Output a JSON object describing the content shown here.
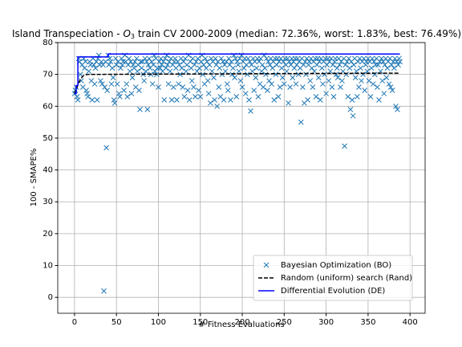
{
  "chart_data": {
    "type": "scatter",
    "title": [
      "Island Transpeciation - ",
      "O",
      "3",
      " train CV 2000-2009 (median: 72.36%, worst: 1.83%, best: 76.49%)"
    ],
    "xlabel": "# Fitness Evaluations",
    "ylabel": "100 - SMAPE%",
    "xlim": [
      -20,
      418
    ],
    "ylim": [
      -5,
      80
    ],
    "xticks": [
      0,
      50,
      100,
      150,
      200,
      250,
      300,
      350,
      400
    ],
    "yticks": [
      0,
      10,
      20,
      30,
      40,
      50,
      60,
      70,
      80
    ],
    "grid": true,
    "legend": "lower right",
    "series": [
      {
        "name": "Bayesian Optimization (BO)",
        "type": "scatter",
        "color": "#1f77b4",
        "x": [
          0,
          1,
          2,
          3,
          4,
          5,
          6,
          7,
          8,
          9,
          10,
          11,
          12,
          13,
          14,
          15,
          16,
          17,
          18,
          19,
          20,
          21,
          22,
          23,
          24,
          25,
          26,
          27,
          28,
          29,
          30,
          31,
          32,
          33,
          34,
          35,
          36,
          37,
          38,
          39,
          40,
          41,
          42,
          43,
          44,
          45,
          46,
          47,
          48,
          49,
          50,
          51,
          52,
          53,
          54,
          55,
          56,
          57,
          58,
          59,
          60,
          61,
          62,
          63,
          64,
          65,
          66,
          67,
          68,
          69,
          70,
          71,
          72,
          73,
          74,
          75,
          76,
          77,
          78,
          79,
          80,
          81,
          82,
          83,
          84,
          85,
          86,
          87,
          88,
          89,
          90,
          91,
          92,
          93,
          94,
          95,
          96,
          97,
          98,
          99,
          100,
          101,
          102,
          103,
          104,
          105,
          106,
          107,
          108,
          109,
          110,
          111,
          112,
          113,
          114,
          115,
          116,
          117,
          118,
          119,
          120,
          121,
          122,
          123,
          124,
          125,
          126,
          127,
          128,
          129,
          130,
          131,
          132,
          133,
          134,
          135,
          136,
          137,
          138,
          139,
          140,
          141,
          142,
          143,
          144,
          145,
          146,
          147,
          148,
          149,
          150,
          151,
          152,
          153,
          154,
          155,
          156,
          157,
          158,
          159,
          160,
          161,
          162,
          163,
          164,
          165,
          166,
          167,
          168,
          169,
          170,
          171,
          172,
          173,
          174,
          175,
          176,
          177,
          178,
          179,
          180,
          181,
          182,
          183,
          184,
          185,
          186,
          187,
          188,
          189,
          190,
          191,
          192,
          193,
          194,
          195,
          196,
          197,
          198,
          199,
          200,
          201,
          202,
          203,
          204,
          205,
          206,
          207,
          208,
          209,
          210,
          211,
          212,
          213,
          214,
          215,
          216,
          217,
          218,
          219,
          220,
          221,
          222,
          223,
          224,
          225,
          226,
          227,
          228,
          229,
          230,
          231,
          232,
          233,
          234,
          235,
          236,
          237,
          238,
          239,
          240,
          241,
          242,
          243,
          244,
          245,
          246,
          247,
          248,
          249,
          250,
          251,
          252,
          253,
          254,
          255,
          256,
          257,
          258,
          259,
          260,
          261,
          262,
          263,
          264,
          265,
          266,
          267,
          268,
          269,
          270,
          271,
          272,
          273,
          274,
          275,
          276,
          277,
          278,
          279,
          280,
          281,
          282,
          283,
          284,
          285,
          286,
          287,
          288,
          289,
          290,
          291,
          292,
          293,
          294,
          295,
          296,
          297,
          298,
          299,
          300,
          301,
          302,
          303,
          304,
          305,
          306,
          307,
          308,
          309,
          310,
          311,
          312,
          313,
          314,
          315,
          316,
          317,
          318,
          319,
          320,
          321,
          322,
          323,
          324,
          325,
          326,
          327,
          328,
          329,
          330,
          331,
          332,
          333,
          334,
          335,
          336,
          337,
          338,
          339,
          340,
          341,
          342,
          343,
          344,
          345,
          346,
          347,
          348,
          349,
          350,
          351,
          352,
          353,
          354,
          355,
          356,
          357,
          358,
          359,
          360,
          361,
          362,
          363,
          364,
          365,
          366,
          367,
          368,
          369,
          370,
          371,
          372,
          373,
          374,
          375,
          376,
          377,
          378,
          379,
          380,
          381,
          382,
          383,
          384,
          385,
          386,
          387,
          388
        ],
        "values": [
          64,
          65,
          66,
          63,
          62,
          75,
          74,
          70,
          68,
          73,
          66,
          75,
          72,
          74,
          65,
          64,
          63,
          71,
          74,
          73,
          68,
          62,
          75,
          73,
          67,
          72,
          74,
          62,
          75,
          76,
          73,
          68,
          74,
          67,
          73,
          2,
          66,
          74,
          47,
          65,
          76,
          73,
          75,
          74,
          67,
          72,
          69,
          62,
          61,
          75,
          73,
          67,
          74,
          64,
          63,
          72,
          75,
          73,
          74,
          65,
          76,
          74,
          67,
          63,
          73,
          75,
          71,
          74,
          64,
          69,
          73,
          72,
          74,
          66,
          75,
          71,
          73,
          65,
          59,
          74,
          72,
          74,
          70,
          68,
          75,
          71,
          74,
          59,
          73,
          75,
          72,
          70,
          74,
          67,
          73,
          76,
          71,
          75,
          70,
          72,
          66,
          74,
          72,
          75,
          73,
          71,
          74,
          62,
          75,
          72,
          76,
          73,
          67,
          74,
          71,
          75,
          62,
          73,
          66,
          74,
          75,
          72,
          62,
          74,
          67,
          73,
          70,
          75,
          72,
          66,
          74,
          63,
          75,
          71,
          73,
          65,
          76,
          62,
          74,
          72,
          68,
          75,
          66,
          73,
          63,
          74,
          71,
          75,
          65,
          72,
          63,
          74,
          76,
          70,
          73,
          67,
          75,
          72,
          74,
          68,
          64,
          73,
          61,
          75,
          71,
          74,
          69,
          62,
          75,
          73,
          60,
          74,
          66,
          72,
          63,
          75,
          70,
          74,
          62,
          73,
          71,
          74,
          67,
          65,
          75,
          73,
          62,
          74,
          70,
          72,
          76,
          69,
          75,
          63,
          74,
          73,
          71,
          75,
          68,
          76,
          66,
          74,
          72,
          75,
          64,
          73,
          70,
          75,
          62,
          74,
          58.5,
          73,
          71,
          75,
          65,
          74,
          69,
          72,
          75,
          63,
          74,
          67,
          75,
          71,
          73,
          66,
          76,
          72,
          70,
          75,
          65,
          74,
          68,
          73,
          75,
          67,
          72,
          74,
          62,
          75,
          70,
          73,
          75,
          63,
          74,
          66,
          75,
          72,
          69,
          74,
          67,
          75,
          73,
          71,
          75,
          61,
          74,
          66,
          73,
          75,
          69,
          74,
          72,
          75,
          67,
          73,
          75,
          70,
          74,
          72,
          55,
          75,
          66,
          73,
          61,
          74,
          70,
          75,
          62,
          73,
          74,
          68,
          75,
          72,
          66,
          74,
          71,
          75,
          63,
          73,
          75,
          69,
          74,
          62,
          75,
          72,
          67,
          74,
          70,
          75,
          64,
          73,
          75,
          68,
          74,
          71,
          75,
          66,
          73,
          63,
          74,
          75,
          70,
          72,
          69,
          75,
          73,
          66,
          74,
          68,
          71,
          75,
          47.5,
          73,
          70,
          74,
          63,
          75,
          72,
          59,
          74,
          62,
          57,
          73,
          75,
          69,
          71,
          63,
          74,
          66,
          75,
          72,
          68,
          74,
          70,
          75,
          65,
          73,
          74,
          71,
          75,
          68,
          74,
          63,
          72,
          75,
          67,
          74,
          70,
          73,
          75,
          66,
          73,
          62,
          74,
          71,
          75,
          68,
          74,
          64,
          73,
          75,
          69,
          72,
          74,
          67,
          75,
          66,
          73,
          65,
          74,
          72,
          75,
          60,
          74,
          59,
          73,
          75,
          74
        ]
      },
      {
        "name": "Random (uniform) search (Rand)",
        "type": "line",
        "linestyle": "dashed",
        "color": "#000000",
        "x": [
          0,
          3,
          6,
          10,
          15,
          388
        ],
        "values": [
          64,
          66,
          68,
          69.5,
          70,
          70.4
        ]
      },
      {
        "name": "Differential Evolution (DE)",
        "type": "line",
        "linestyle": "solid",
        "color": "#0000ff",
        "x": [
          0,
          2,
          2,
          4,
          4,
          40,
          40,
          388
        ],
        "values": [
          64,
          64,
          66.5,
          66.5,
          75.5,
          75.5,
          76.4,
          76.4
        ]
      }
    ]
  }
}
